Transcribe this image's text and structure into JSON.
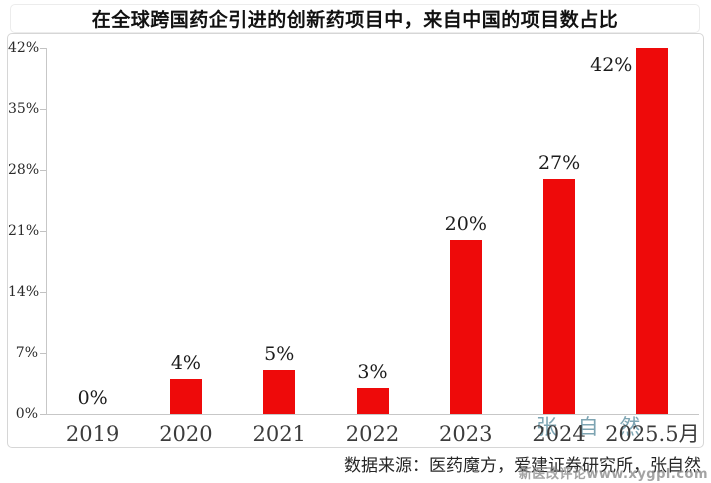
{
  "header": {
    "title": "在全球跨国药企引进的创新药项目中，来自中国的项目数占比"
  },
  "chart_data": {
    "type": "bar",
    "title": "在全球跨国药企引进的创新药项目中，来自中国的项目数占比",
    "categories": [
      "2019",
      "2020",
      "2021",
      "2022",
      "2023",
      "2024",
      "2025.5月"
    ],
    "values": [
      0,
      4,
      5,
      3,
      20,
      27,
      42
    ],
    "data_labels": [
      "0%",
      "4%",
      "5%",
      "3%",
      "20%",
      "27%",
      "42%"
    ],
    "unit": "%",
    "xlabel": "",
    "ylabel": "",
    "ylim": [
      0,
      42
    ],
    "yticks": [
      "42%",
      "35%",
      "28%",
      "21%",
      "14%",
      "7%",
      "0%"
    ],
    "grid": false,
    "legend": null,
    "bar_color": "#ee0a0a"
  },
  "footer": {
    "source": "数据来源：医药魔方，爱建证券研究所，张自然"
  },
  "watermarks": {
    "author": "张 自 然",
    "site": "新医改评论www.xygpl.com"
  },
  "colors": {
    "bar_red": "#ee0a0a",
    "axis_gray": "#c7c7c7",
    "label_dark": "#1c1c1c",
    "xlabel_gray": "#3c3c3c",
    "watermark_teal": "#528698",
    "watermark_gray": "#8c8c8c"
  }
}
